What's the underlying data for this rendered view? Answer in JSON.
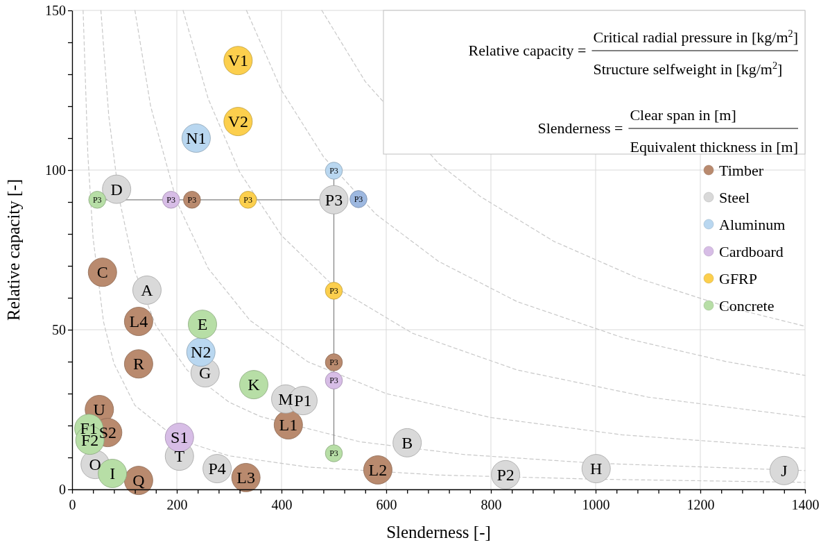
{
  "chart_data": {
    "type": "bubble",
    "xlabel": "Slenderness [-]",
    "ylabel": "Relative capacity [-]",
    "xlim": [
      0,
      1400
    ],
    "ylim": [
      0,
      150
    ],
    "xticks": [
      0,
      {
        "value": 40,
        "label": null
      },
      {
        "value": 80,
        "label": null
      },
      {
        "value": 120,
        "label": null
      },
      {
        "value": 160,
        "label": null
      },
      200,
      {
        "value": 240,
        "label": null
      },
      {
        "value": 280,
        "label": null
      },
      {
        "value": 320,
        "label": null
      },
      {
        "value": 360,
        "label": null
      },
      400,
      {
        "value": 440,
        "label": null
      },
      {
        "value": 480,
        "label": null
      },
      {
        "value": 520,
        "label": null
      },
      {
        "value": 560,
        "label": null
      },
      600,
      {
        "value": 640,
        "label": null
      },
      {
        "value": 680,
        "label": null
      },
      {
        "value": 720,
        "label": null
      },
      {
        "value": 760,
        "label": null
      },
      800,
      {
        "value": 840,
        "label": null
      },
      {
        "value": 880,
        "label": null
      },
      {
        "value": 920,
        "label": null
      },
      {
        "value": 960,
        "label": null
      },
      1000,
      {
        "value": 1040,
        "label": null
      },
      {
        "value": 1080,
        "label": null
      },
      {
        "value": 1120,
        "label": null
      },
      {
        "value": 1160,
        "label": null
      },
      1200,
      {
        "value": 1240,
        "label": null
      },
      {
        "value": 1280,
        "label": null
      },
      {
        "value": 1320,
        "label": null
      },
      {
        "value": 1360,
        "label": null
      },
      1400
    ],
    "yticks": [
      0,
      {
        "value": 10,
        "label": null
      },
      {
        "value": 20,
        "label": null
      },
      {
        "value": 30,
        "label": null
      },
      {
        "value": 40,
        "label": null
      },
      50,
      {
        "value": 60,
        "label": null
      },
      {
        "value": 70,
        "label": null
      },
      {
        "value": 80,
        "label": null
      },
      {
        "value": 90,
        "label": null
      },
      100,
      {
        "value": 110,
        "label": null
      },
      {
        "value": 120,
        "label": null
      },
      {
        "value": 130,
        "label": null
      },
      {
        "value": 140,
        "label": null
      },
      150
    ],
    "grid": true,
    "legend": "right",
    "marker": "circle",
    "series": [
      {
        "type": "line",
        "color": "#c8c8c8",
        "line_style": "dashed",
        "marker": "none",
        "x": [
          21,
          30,
          40,
          60,
          80,
          120,
          200,
          300,
          450,
          700,
          1000,
          1400
        ],
        "values": [
          150,
          105,
          78.8,
          52.5,
          39.4,
          26.3,
          15.8,
          10.5,
          7,
          4.5,
          3.2,
          2.2
        ]
      },
      {
        "type": "line",
        "color": "#c8c8c8",
        "line_style": "dashed",
        "marker": "none",
        "x": [
          55,
          70,
          90,
          120,
          160,
          220,
          300,
          360,
          550,
          750,
          1000,
          1400
        ],
        "values": [
          150,
          117,
          91,
          68.3,
          51.3,
          37.3,
          27.3,
          22.8,
          14.9,
          10.9,
          8.2,
          5.9
        ]
      },
      {
        "type": "line",
        "color": "#c8c8c8",
        "line_style": "dashed",
        "marker": "none",
        "x": [
          120,
          150,
          200,
          260,
          340,
          450,
          600,
          800,
          1050,
          1400
        ],
        "values": [
          150,
          120,
          90,
          69.2,
          52.9,
          40,
          30,
          22.5,
          17.1,
          12.9
        ]
      },
      {
        "type": "line",
        "color": "#c8c8c8",
        "line_style": "dashed",
        "marker": "none",
        "x": [
          212,
          260,
          320,
          400,
          500,
          650,
          850,
          1100,
          1400
        ],
        "values": [
          150,
          122.3,
          99.4,
          79.5,
          63.6,
          48.9,
          37.4,
          28.9,
          22.7
        ]
      },
      {
        "type": "line",
        "color": "#c8c8c8",
        "line_style": "dashed",
        "marker": "none",
        "x": [
          333,
          400,
          480,
          580,
          700,
          850,
          1050,
          1250,
          1400
        ],
        "values": [
          150,
          125,
          104.2,
          86.2,
          71.4,
          58.8,
          47.6,
          40,
          35.7
        ]
      },
      {
        "type": "line",
        "color": "#c8c8c8",
        "line_style": "dashed",
        "marker": "none",
        "x": [
          477,
          560,
          700,
          780,
          920,
          1080,
          1250,
          1400
        ],
        "values": [
          150,
          127.7,
          102.1,
          91.7,
          77.7,
          66.2,
          57.2,
          51.1
        ]
      },
      {
        "type": "line",
        "color": "#808080",
        "line_style": "solid",
        "marker": "none",
        "x": [
          48,
          500
        ],
        "values": [
          90.7,
          90.7
        ]
      },
      {
        "type": "line",
        "color": "#808080",
        "line_style": "solid",
        "marker": "none",
        "x": [
          500,
          500
        ],
        "values": [
          99.8,
          11.3
        ]
      },
      {
        "name": "Timber",
        "color": "#b98a6e",
        "x": [
          58,
          127,
          127,
          52,
          68,
          127,
          332,
          413,
          584,
          229,
          500
        ],
        "values": [
          68,
          52.6,
          39.3,
          25,
          17.8,
          2.8,
          3.7,
          20.2,
          6.1,
          90.7,
          39.8
        ],
        "sizes": [
          1,
          1,
          1,
          1,
          1,
          1,
          1,
          1,
          1,
          0.36,
          0.36
        ]
      },
      {
        "name": "Steel",
        "color": "#d9d9d9",
        "x": [
          85,
          143,
          254,
          408,
          441,
          44,
          205,
          277,
          640,
          828,
          1001,
          1360,
          500
        ],
        "values": [
          94,
          62.4,
          36.5,
          28.3,
          27.8,
          7.8,
          10.4,
          6.5,
          14.6,
          4.6,
          6.5,
          5.9,
          90.7
        ],
        "sizes": [
          1,
          1,
          1,
          1,
          1,
          1,
          1,
          1,
          1,
          1,
          1,
          1,
          1
        ]
      },
      {
        "name": "Aluminum",
        "color": "#b9d7f0",
        "colors": [
          "#b9d7f0",
          "#b9d7f0",
          "#b9d7f0",
          "#9db8e0"
        ],
        "x": [
          237,
          246,
          500,
          547
        ],
        "values": [
          110,
          43,
          99.8,
          90.9
        ],
        "sizes": [
          1,
          1,
          0.36,
          0.36
        ]
      },
      {
        "name": "Cardboard",
        "color": "#d7bde6",
        "x": [
          205,
          189,
          500
        ],
        "values": [
          16.3,
          90.7,
          34.1
        ],
        "sizes": [
          1,
          0.36,
          0.36
        ]
      },
      {
        "name": "GFRP",
        "color": "#fccf4d",
        "x": [
          317,
          317,
          336,
          500
        ],
        "values": [
          134.3,
          115.2,
          90.7,
          62.2
        ],
        "sizes": [
          1,
          1,
          0.36,
          0.36
        ]
      },
      {
        "name": "Concrete",
        "color": "#b7dea6",
        "x": [
          249,
          347,
          32,
          34,
          77,
          48,
          500
        ],
        "values": [
          51.7,
          32.8,
          19.1,
          15.4,
          5,
          90.7,
          11.3
        ],
        "sizes": [
          1,
          1,
          1,
          1,
          1,
          0.36,
          0.36
        ]
      }
    ],
    "annotations": [
      "Relative capacity =",
      "Critical radial pressure in [kg/m$^{2}$]",
      "Structure selfweight in [kg/m$^{2}$]",
      "Slenderness =",
      "Clear span in [m]",
      "Equivalent thickness in [m]",
      {
        "text": "C",
        "x": 58,
        "y": 68
      },
      {
        "text": "L4",
        "x": 127,
        "y": 52.6
      },
      {
        "text": "R",
        "x": 127,
        "y": 39.3
      },
      {
        "text": "U",
        "x": 52,
        "y": 25
      },
      {
        "text": "S2",
        "x": 68,
        "y": 17.8
      },
      {
        "text": "Q",
        "x": 127,
        "y": 2.8
      },
      {
        "text": "L3",
        "x": 332,
        "y": 3.7
      },
      {
        "text": "L1",
        "x": 413,
        "y": 20.2
      },
      {
        "text": "L2",
        "x": 584,
        "y": 6.1
      },
      {
        "text": "P3",
        "x": 229,
        "y": 90.7
      },
      {
        "text": "P3",
        "x": 500,
        "y": 39.8
      },
      {
        "text": "D",
        "x": 85,
        "y": 94
      },
      {
        "text": "A",
        "x": 143,
        "y": 62.4
      },
      {
        "text": "G",
        "x": 254,
        "y": 36.5
      },
      {
        "text": "M",
        "x": 408,
        "y": 28.3
      },
      {
        "text": "P1",
        "x": 441,
        "y": 27.8
      },
      {
        "text": "O",
        "x": 44,
        "y": 7.8
      },
      {
        "text": "T",
        "x": 205,
        "y": 10.4
      },
      {
        "text": "P4",
        "x": 277,
        "y": 6.5
      },
      {
        "text": "B",
        "x": 640,
        "y": 14.6
      },
      {
        "text": "P2",
        "x": 828,
        "y": 4.6
      },
      {
        "text": "H",
        "x": 1001,
        "y": 6.5
      },
      {
        "text": "J",
        "x": 1360,
        "y": 5.9
      },
      {
        "text": "P3",
        "x": 500,
        "y": 90.7
      },
      {
        "text": "N1",
        "x": 237,
        "y": 110
      },
      {
        "text": "N2",
        "x": 246,
        "y": 43
      },
      {
        "text": "P3",
        "x": 500,
        "y": 99.8
      },
      {
        "text": "P3",
        "x": 547,
        "y": 90.9
      },
      {
        "text": "S1",
        "x": 205,
        "y": 16.3
      },
      {
        "text": "P3",
        "x": 189,
        "y": 90.7
      },
      {
        "text": "P3",
        "x": 500,
        "y": 34.1
      },
      {
        "text": "V1",
        "x": 317,
        "y": 134.3
      },
      {
        "text": "V2",
        "x": 317,
        "y": 115.2
      },
      {
        "text": "P3",
        "x": 336,
        "y": 90.7
      },
      {
        "text": "P3",
        "x": 500,
        "y": 62.2
      },
      {
        "text": "E",
        "x": 249,
        "y": 51.7
      },
      {
        "text": "K",
        "x": 347,
        "y": 32.8
      },
      {
        "text": "F1",
        "x": 32,
        "y": 19.1
      },
      {
        "text": "F2",
        "x": 34,
        "y": 15.4
      },
      {
        "text": "I",
        "x": 77,
        "y": 5
      },
      {
        "text": "P3",
        "x": 48,
        "y": 90.7
      },
      {
        "text": "P3",
        "x": 500,
        "y": 11.3
      }
    ]
  }
}
